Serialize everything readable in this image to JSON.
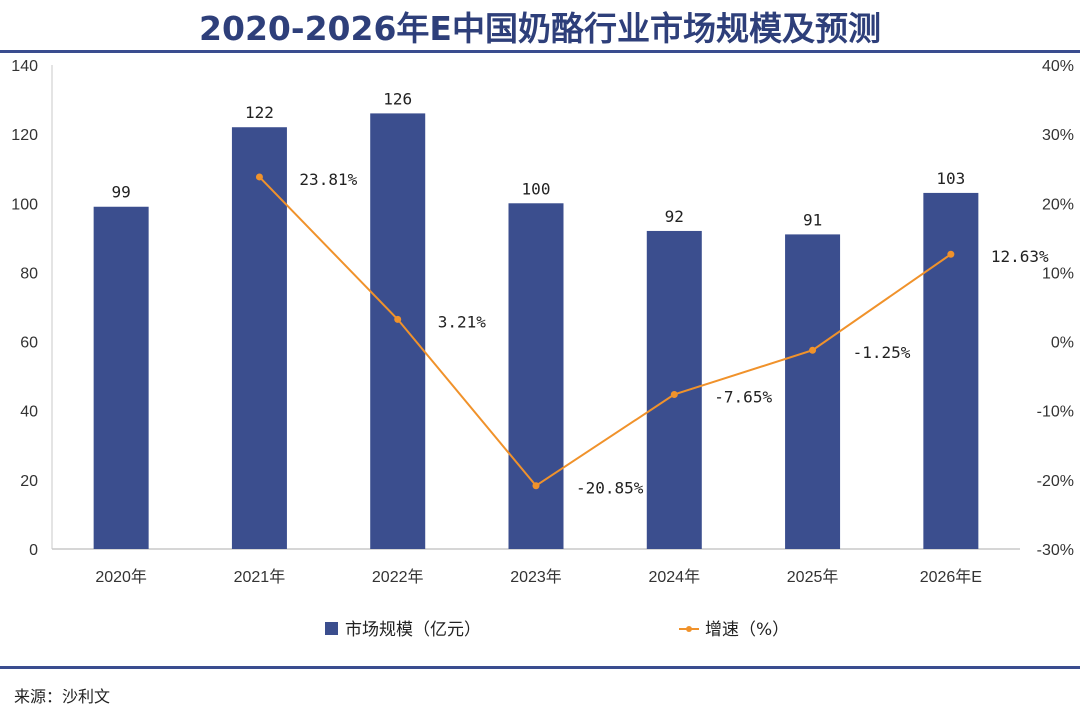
{
  "title": "2020-2026年E中国奶酪行业市场规模及预测",
  "source": "来源：沙利文",
  "colors": {
    "bar": "#3b4e8e",
    "line": "#f0922b",
    "rule": "#3a4d8f",
    "title": "#2e3f7a"
  },
  "chart_data": {
    "type": "bar+line",
    "title": "2020-2026年E中国奶酪行业市场规模及预测",
    "categories": [
      "2020年",
      "2021年",
      "2022年",
      "2023年",
      "2024年",
      "2025年",
      "2026年E"
    ],
    "series": [
      {
        "name": "市场规模（亿元）",
        "type": "bar",
        "axis": "left",
        "values": [
          99,
          122,
          126,
          100,
          92,
          91,
          103
        ],
        "labels": [
          "99",
          "122",
          "126",
          "100",
          "92",
          "91",
          "103"
        ]
      },
      {
        "name": "增速（%）",
        "type": "line",
        "axis": "right",
        "values": [
          null,
          23.81,
          3.21,
          -20.85,
          -7.65,
          -1.25,
          12.63
        ],
        "labels": [
          "",
          "23.81%",
          "3.21%",
          "-20.85%",
          "-7.65%",
          "-1.25%",
          "12.63%"
        ]
      }
    ],
    "left_axis": {
      "range": [
        0,
        140
      ],
      "ticks": [
        0,
        20,
        40,
        60,
        80,
        100,
        120,
        140
      ],
      "tick_labels": [
        "0",
        "20",
        "40",
        "60",
        "80",
        "100",
        "120",
        "140"
      ]
    },
    "right_axis": {
      "range": [
        -30,
        40
      ],
      "ticks": [
        -30,
        -20,
        -10,
        0,
        10,
        20,
        30,
        40
      ],
      "tick_labels": [
        "-30%",
        "-20%",
        "-10%",
        "0%",
        "10%",
        "20%",
        "30%",
        "40%"
      ]
    },
    "grid": false,
    "legend": {
      "placement": "bottom-center",
      "items": [
        "市场规模（亿元）",
        "增速（%）"
      ]
    }
  }
}
